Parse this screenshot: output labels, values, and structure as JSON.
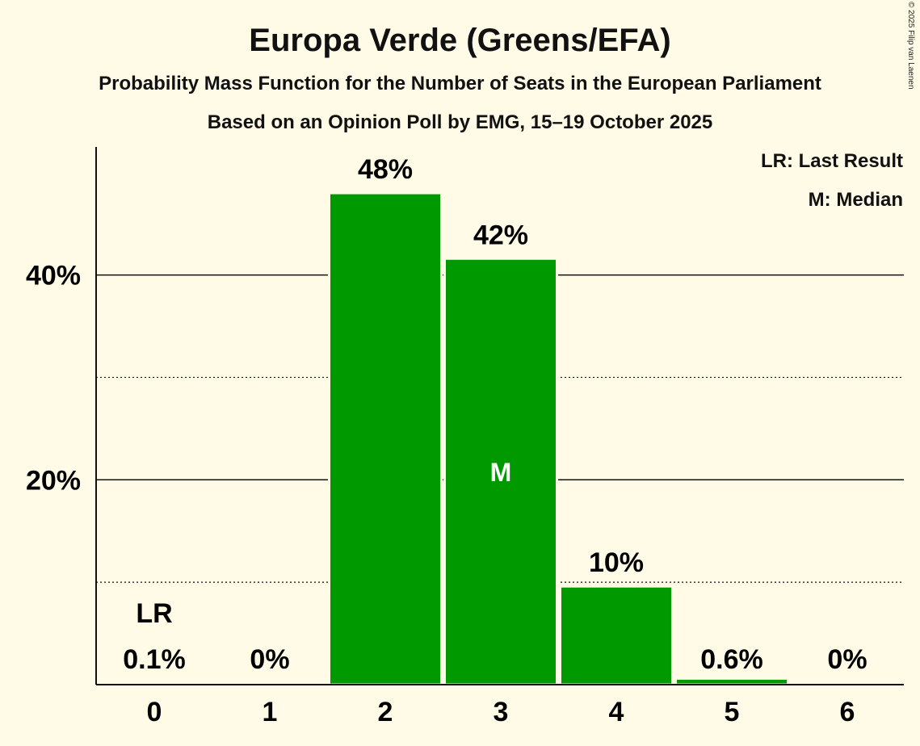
{
  "chart_data": {
    "type": "bar",
    "title": "Europa Verde (Greens/EFA)",
    "subtitle": "Probability Mass Function for the Number of Seats in the European Parliament",
    "subtitle2": "Based on an Opinion Poll by EMG, 15–19 October 2025",
    "copyright": "© 2025 Filip van Laenen",
    "legend": [
      "LR: Last Result",
      "M: Median"
    ],
    "categories": [
      "0",
      "1",
      "2",
      "3",
      "4",
      "5",
      "6"
    ],
    "values": [
      0.1,
      0,
      48,
      41.6,
      9.6,
      0.6,
      0
    ],
    "value_labels": [
      "0.1%",
      "0%",
      "48%",
      "42%",
      "10%",
      "0.6%",
      "0%"
    ],
    "ylim": [
      0,
      52.5
    ],
    "yticks_major": [
      20,
      40
    ],
    "ytick_labels": [
      "20%",
      "40%"
    ],
    "yticks_minor": [
      10,
      30
    ],
    "last_result_index": 0,
    "last_result_label": "LR",
    "median_index": 3,
    "median_label": "M",
    "bar_color": "#009900",
    "median_label_color": "#ffffff",
    "xlabel": "",
    "ylabel": ""
  }
}
